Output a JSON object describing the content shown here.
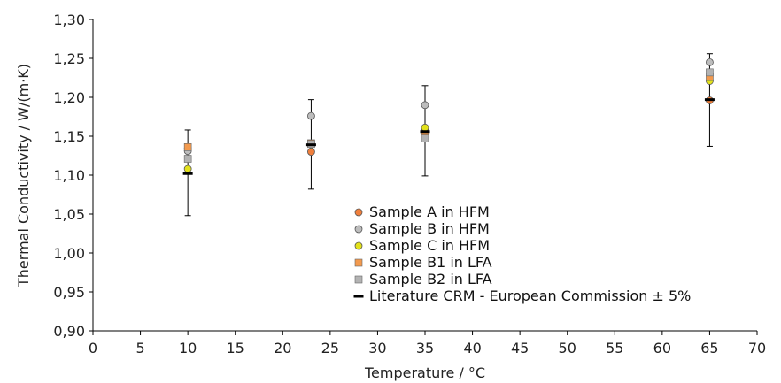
{
  "chart_data": {
    "type": "scatter",
    "xlabel": "Temperature / °C",
    "ylabel": "Thermal Conductivity / W/(m·K)",
    "xlim": [
      0,
      70
    ],
    "ylim": [
      0.9,
      1.3
    ],
    "x_ticks": [
      0,
      5,
      10,
      15,
      20,
      25,
      30,
      35,
      40,
      45,
      50,
      55,
      60,
      65,
      70
    ],
    "x_tick_labels": [
      "0",
      "5",
      "10",
      "15",
      "20",
      "25",
      "30",
      "35",
      "40",
      "45",
      "50",
      "55",
      "60",
      "65",
      "70"
    ],
    "y_ticks": [
      0.9,
      0.95,
      1.0,
      1.05,
      1.1,
      1.15,
      1.2,
      1.25,
      1.3
    ],
    "y_tick_labels": [
      "0,90",
      "0,95",
      "1,00",
      "1,05",
      "1,10",
      "1,15",
      "1,20",
      "1,25",
      "1,30"
    ],
    "grid": false,
    "legend_position": "bottom-center",
    "series": [
      {
        "name": "Sample A in HFM",
        "marker": "circle",
        "color": "#f07f3c",
        "x": [
          10,
          23,
          35,
          65
        ],
        "y": [
          1.134,
          1.13,
          1.158,
          1.196
        ]
      },
      {
        "name": "Sample B in HFM",
        "marker": "circle",
        "color": "#bdbdbd",
        "x": [
          10,
          23,
          35,
          65
        ],
        "y": [
          1.131,
          1.176,
          1.19,
          1.245
        ]
      },
      {
        "name": "Sample C in HFM",
        "marker": "circle",
        "color": "#e3e21b",
        "x": [
          10,
          23,
          35,
          65
        ],
        "y": [
          1.108,
          1.139,
          1.161,
          1.221
        ]
      },
      {
        "name": "Sample B1 in LFA",
        "marker": "square",
        "color": "#f39a4e",
        "x": [
          10,
          23,
          35,
          65
        ],
        "y": [
          1.136,
          1.141,
          1.152,
          1.226
        ]
      },
      {
        "name": "Sample B2 in LFA",
        "marker": "square",
        "color": "#b3b3b3",
        "x": [
          10,
          23,
          35,
          65
        ],
        "y": [
          1.121,
          1.14,
          1.147,
          1.232
        ]
      },
      {
        "name": "Literature CRM - European Commission ± 5%",
        "marker": "dash",
        "color": "#000000",
        "x": [
          10,
          23,
          35,
          65
        ],
        "y": [
          1.102,
          1.139,
          1.156,
          1.197
        ],
        "error_low": [
          1.048,
          1.082,
          1.099,
          1.137
        ],
        "error_high": [
          1.158,
          1.197,
          1.215,
          1.256
        ]
      }
    ]
  }
}
